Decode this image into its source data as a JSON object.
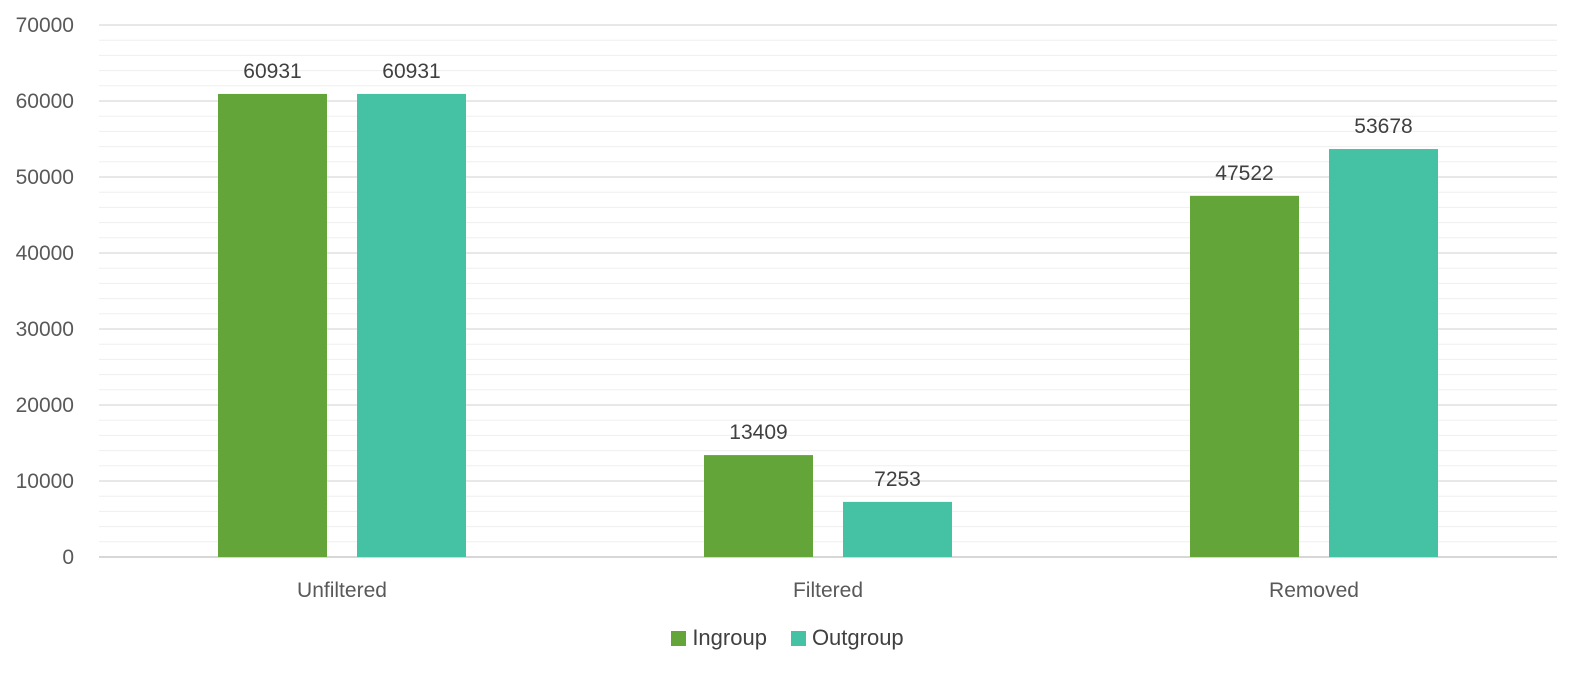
{
  "chart_data": {
    "type": "bar",
    "categories": [
      "Unfiltered",
      "Filtered",
      "Removed"
    ],
    "series": [
      {
        "name": "Ingroup",
        "values": [
          60931,
          13409,
          47522
        ],
        "color": "#63a538"
      },
      {
        "name": "Outgroup",
        "values": [
          60931,
          7253,
          53678
        ],
        "color": "#45c1a4"
      }
    ],
    "ylim": [
      0,
      70000
    ],
    "yticks": [
      0,
      10000,
      20000,
      30000,
      40000,
      50000,
      60000,
      70000
    ],
    "ytick_labels": [
      "0",
      "10000",
      "20000",
      "30000",
      "40000",
      "50000",
      "60000",
      "70000"
    ],
    "grid": true,
    "minor_grid": true,
    "legend": "bottom"
  }
}
